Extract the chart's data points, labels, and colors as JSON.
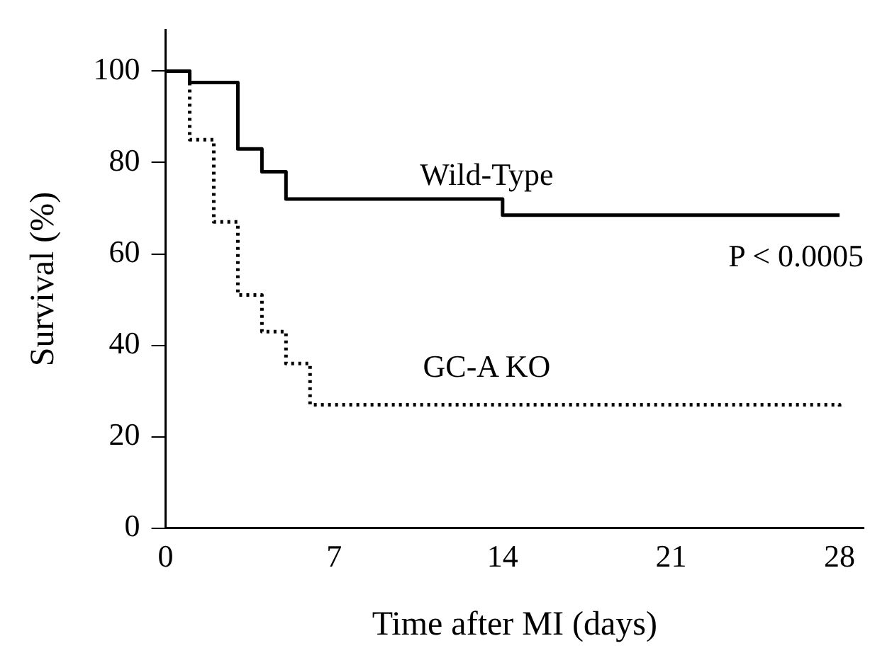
{
  "chart_data": {
    "type": "step",
    "xlabel": "Time after MI (days)",
    "ylabel": "Survival (%)",
    "xlim": [
      0,
      29
    ],
    "xticks": [
      0,
      7,
      14,
      21,
      28
    ],
    "ylim": [
      0,
      109
    ],
    "yticks": [
      0,
      20,
      40,
      60,
      80,
      100
    ],
    "grid": false,
    "legend": false,
    "marker": "none",
    "series": [
      {
        "name": "Wild-Type",
        "color": "#000000",
        "line_style": "solid",
        "x": [
          0,
          1,
          3,
          4,
          5,
          14,
          28
        ],
        "values": [
          100,
          97.5,
          83,
          78,
          72,
          68.5,
          68.5
        ]
      },
      {
        "name": "GC-A KO",
        "color": "#000000",
        "line_style": "dotted",
        "x": [
          0,
          1,
          2,
          3,
          4,
          5,
          6,
          28
        ],
        "values": [
          100,
          85,
          67,
          51,
          43,
          36,
          27,
          26.5
        ]
      }
    ],
    "annotations": [
      "P < 0.0005"
    ]
  }
}
